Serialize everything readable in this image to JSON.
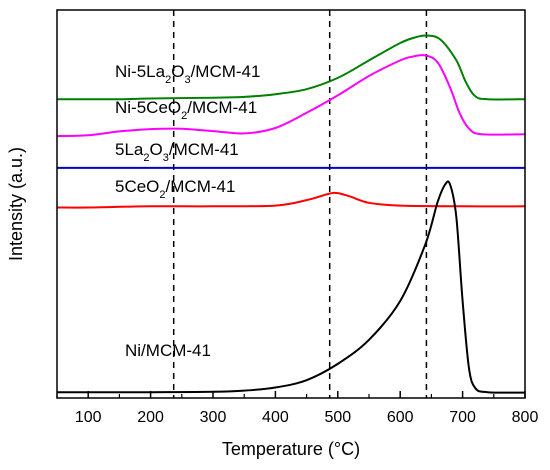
{
  "chart_data": {
    "type": "line",
    "xlabel": "Temperature (°C)",
    "ylabel": "Intensity (a.u.)",
    "xlim": [
      50,
      800
    ],
    "xticks": [
      100,
      200,
      300,
      400,
      500,
      600,
      700,
      800
    ],
    "xtick_labels": [
      "100",
      "200",
      "300",
      "400",
      "500",
      "600",
      "700",
      "800"
    ],
    "y_units": "a.u. (stacked profiles, vertically offset)",
    "yticks_shown": false,
    "ylim": [
      0,
      100
    ],
    "reference_lines_x": [
      237,
      487,
      642
    ],
    "reference_line_style": "dashed",
    "series": [
      {
        "name": "Ni-5La2O3/MCM-41",
        "color": "#008000",
        "label_parts": [
          [
            "Ni-5La",
            false
          ],
          [
            "2",
            true
          ],
          [
            "O",
            false
          ],
          [
            "3",
            true
          ],
          [
            "/MCM-41",
            false
          ]
        ],
        "points": [
          [
            50,
            77
          ],
          [
            150,
            77
          ],
          [
            200,
            77.2
          ],
          [
            300,
            77.4
          ],
          [
            350,
            77.6
          ],
          [
            400,
            78.3
          ],
          [
            450,
            79.6
          ],
          [
            500,
            82.5
          ],
          [
            550,
            87.0
          ],
          [
            600,
            91.5
          ],
          [
            625,
            93.0
          ],
          [
            645,
            93.4
          ],
          [
            665,
            92.3
          ],
          [
            690,
            87.0
          ],
          [
            705,
            81.5
          ],
          [
            720,
            77.8
          ],
          [
            740,
            77.0
          ],
          [
            800,
            77
          ]
        ]
      },
      {
        "name": "Ni-5CeO2/MCM-41",
        "color": "#ff00ff",
        "label_parts": [
          [
            "Ni-5CeO",
            false
          ],
          [
            "2",
            true
          ],
          [
            "/MCM-41",
            false
          ]
        ],
        "points": [
          [
            50,
            67.5
          ],
          [
            100,
            67.7
          ],
          [
            150,
            68.7
          ],
          [
            200,
            69.3
          ],
          [
            250,
            69.4
          ],
          [
            300,
            68.8
          ],
          [
            350,
            68.2
          ],
          [
            400,
            69.6
          ],
          [
            450,
            73.5
          ],
          [
            500,
            78.0
          ],
          [
            550,
            83.0
          ],
          [
            600,
            87.0
          ],
          [
            620,
            88.0
          ],
          [
            640,
            88.3
          ],
          [
            660,
            86.5
          ],
          [
            680,
            80.0
          ],
          [
            695,
            73.5
          ],
          [
            710,
            69.5
          ],
          [
            730,
            68.0
          ],
          [
            800,
            68
          ]
        ]
      },
      {
        "name": "5La2O3/MCM-41",
        "color": "#0000cc",
        "label_parts": [
          [
            "5La",
            false
          ],
          [
            "2",
            true
          ],
          [
            "O",
            false
          ],
          [
            "3",
            true
          ],
          [
            "/MCM-41",
            false
          ]
        ],
        "points": [
          [
            50,
            59.3
          ],
          [
            200,
            59.3
          ],
          [
            400,
            59.3
          ],
          [
            600,
            59.3
          ],
          [
            800,
            59.3
          ]
        ]
      },
      {
        "name": "5CeO2/MCM-41",
        "color": "#ff0000",
        "label_parts": [
          [
            "5CeO",
            false
          ],
          [
            "2",
            true
          ],
          [
            "/MCM-41",
            false
          ]
        ],
        "points": [
          [
            50,
            49.1
          ],
          [
            100,
            49.1
          ],
          [
            200,
            49.4
          ],
          [
            300,
            49.4
          ],
          [
            400,
            49.6
          ],
          [
            450,
            51.0
          ],
          [
            485,
            52.6
          ],
          [
            500,
            52.8
          ],
          [
            520,
            51.9
          ],
          [
            550,
            50.3
          ],
          [
            600,
            49.6
          ],
          [
            700,
            49.4
          ],
          [
            800,
            49.4
          ]
        ]
      },
      {
        "name": "Ni/MCM-41",
        "color": "#000000",
        "label_parts": [
          [
            "Ni/MCM-41",
            false
          ]
        ],
        "points": [
          [
            50,
            1.5
          ],
          [
            200,
            1.5
          ],
          [
            300,
            1.6
          ],
          [
            350,
            1.9
          ],
          [
            400,
            2.7
          ],
          [
            450,
            4.6
          ],
          [
            500,
            8.8
          ],
          [
            550,
            15.0
          ],
          [
            600,
            25.0
          ],
          [
            640,
            39.5
          ],
          [
            660,
            50.5
          ],
          [
            672,
            55.0
          ],
          [
            680,
            55.0
          ],
          [
            690,
            46.5
          ],
          [
            700,
            25.0
          ],
          [
            710,
            8.0
          ],
          [
            720,
            2.6
          ],
          [
            740,
            1.5
          ],
          [
            800,
            1.4
          ]
        ]
      }
    ]
  }
}
